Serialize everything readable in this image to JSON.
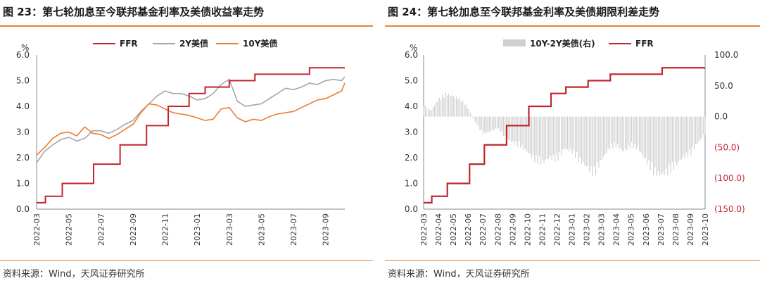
{
  "left": {
    "title": "图 23：第七轮加息至今联邦基金利率及美债收益率走势",
    "source": "资料来源：Wind，天风证券研究所",
    "chart_data": {
      "type": "line",
      "ylabel": "%",
      "ylim": [
        0,
        6
      ],
      "yticks": [
        "0.0",
        "1.0",
        "2.0",
        "3.0",
        "4.0",
        "5.0",
        "6.0"
      ],
      "xticks": [
        "2022-03",
        "2022-05",
        "2022-07",
        "2022-09",
        "2022-11",
        "2023-01",
        "2023-03",
        "2023-05",
        "2023-07",
        "2023-09"
      ],
      "xrange_months": [
        0,
        19.2
      ],
      "legend": [
        "FFR",
        "2Y美债",
        "10Y美债"
      ],
      "legend_position": "top",
      "colors": {
        "FFR": "#c0272d",
        "2Y": "#a6a6a6",
        "10Y": "#ed7d31"
      },
      "series": [
        {
          "name": "FFR",
          "kind": "step",
          "x": [
            0,
            0.55,
            1.6,
            3.55,
            5.2,
            6.85,
            8.2,
            9.5,
            10.5,
            12.0,
            13.6,
            15.0,
            17.0,
            19.2
          ],
          "values": [
            0.25,
            0.5,
            1.0,
            1.75,
            2.5,
            3.25,
            4.0,
            4.5,
            4.75,
            5.0,
            5.25,
            5.25,
            5.5,
            5.5
          ]
        },
        {
          "name": "2Y美债",
          "x": [
            0,
            0.5,
            1.0,
            1.5,
            2.0,
            2.5,
            3.0,
            3.5,
            4.0,
            4.5,
            5.0,
            5.5,
            6.0,
            6.5,
            7.0,
            7.5,
            8.0,
            8.5,
            9.0,
            9.5,
            10.0,
            10.5,
            11.0,
            11.5,
            12.0,
            12.5,
            13.0,
            13.5,
            14.0,
            14.5,
            15.0,
            15.5,
            16.0,
            16.5,
            17.0,
            17.5,
            18.0,
            18.5,
            19.0,
            19.2
          ],
          "values": [
            1.8,
            2.25,
            2.5,
            2.7,
            2.8,
            2.65,
            2.75,
            3.05,
            3.05,
            2.95,
            3.1,
            3.3,
            3.45,
            3.8,
            4.1,
            4.4,
            4.6,
            4.5,
            4.5,
            4.4,
            4.25,
            4.3,
            4.5,
            4.85,
            5.05,
            4.2,
            4.0,
            4.05,
            4.1,
            4.3,
            4.5,
            4.7,
            4.65,
            4.75,
            4.9,
            4.85,
            5.0,
            5.05,
            5.0,
            5.15
          ]
        },
        {
          "name": "10Y美债",
          "x": [
            0,
            0.5,
            1.0,
            1.5,
            2.0,
            2.5,
            3.0,
            3.5,
            4.0,
            4.5,
            5.0,
            5.5,
            6.0,
            6.5,
            7.0,
            7.5,
            8.0,
            8.5,
            9.0,
            9.5,
            10.0,
            10.5,
            11.0,
            11.5,
            12.0,
            12.5,
            13.0,
            13.5,
            14.0,
            14.5,
            15.0,
            15.5,
            16.0,
            16.5,
            17.0,
            17.5,
            18.0,
            18.5,
            19.0,
            19.2
          ],
          "values": [
            2.1,
            2.4,
            2.75,
            2.95,
            3.0,
            2.85,
            3.2,
            2.95,
            2.9,
            2.75,
            2.9,
            3.1,
            3.3,
            3.75,
            4.1,
            4.05,
            3.9,
            3.75,
            3.7,
            3.65,
            3.55,
            3.45,
            3.5,
            3.9,
            3.95,
            3.55,
            3.4,
            3.5,
            3.45,
            3.6,
            3.7,
            3.75,
            3.8,
            3.95,
            4.1,
            4.25,
            4.3,
            4.45,
            4.6,
            4.9
          ]
        }
      ]
    }
  },
  "right": {
    "title": "图 24：第七轮加息至今联邦基金利率及美债期限利差走势",
    "source": "资料来源：Wind，天风证券研究所",
    "chart_data": {
      "type": "bar+line",
      "ylabel": "%",
      "ylim": [
        0,
        6
      ],
      "yticks": [
        "0.0",
        "1.0",
        "2.0",
        "3.0",
        "4.0",
        "5.0",
        "6.0"
      ],
      "y2lim": [
        -150,
        100
      ],
      "y2ticks": [
        "100.0",
        "50.0",
        "0.0",
        "(50.0)",
        "(100.0)",
        "(150.0)"
      ],
      "xticks": [
        "2022-03",
        "2022-04",
        "2022-05",
        "2022-06",
        "2022-07",
        "2022-08",
        "2022-09",
        "2022-10",
        "2022-11",
        "2022-12",
        "2023-01",
        "2023-02",
        "2023-03",
        "2023-04",
        "2023-05",
        "2023-06",
        "2023-07",
        "2023-08",
        "2023-09",
        "2023-10"
      ],
      "xrange_months": [
        0,
        19
      ],
      "legend": [
        "10Y-2Y美债(右)",
        "FFR"
      ],
      "legend_position": "top",
      "colors": {
        "bars": "#cfcfcf",
        "FFR": "#c0272d",
        "negative_tick": "#c0272d"
      },
      "series": [
        {
          "name": "10Y-2Y美债(右)",
          "axis": "right",
          "kind": "bar",
          "x": [
            0,
            0.5,
            1.0,
            1.5,
            2.0,
            2.5,
            3.0,
            3.5,
            4.0,
            4.5,
            5.0,
            5.5,
            6.0,
            6.5,
            7.0,
            7.5,
            8.0,
            8.5,
            9.0,
            9.5,
            10.0,
            10.5,
            11.0,
            11.5,
            12.0,
            12.5,
            13.0,
            13.5,
            14.0,
            14.5,
            15.0,
            15.5,
            16.0,
            16.5,
            17.0,
            17.5,
            18.0,
            18.5,
            19.0
          ],
          "values": [
            20,
            10,
            30,
            40,
            35,
            30,
            15,
            -10,
            -30,
            -25,
            -20,
            -35,
            -45,
            -50,
            -60,
            -75,
            -80,
            -70,
            -75,
            -55,
            -60,
            -75,
            -85,
            -100,
            -75,
            -55,
            -50,
            -60,
            -50,
            -55,
            -75,
            -95,
            -100,
            -95,
            -85,
            -70,
            -65,
            -45,
            -30
          ]
        },
        {
          "name": "FFR",
          "axis": "left",
          "kind": "step",
          "x": [
            0,
            0.55,
            1.6,
            3.1,
            4.1,
            5.6,
            7.1,
            8.6,
            9.6,
            11.1,
            12.6,
            14.6,
            16.1,
            19.0
          ],
          "values": [
            0.25,
            0.5,
            1.0,
            1.75,
            2.5,
            3.25,
            4.0,
            4.5,
            4.75,
            5.0,
            5.25,
            5.25,
            5.5,
            5.5
          ]
        }
      ]
    }
  }
}
